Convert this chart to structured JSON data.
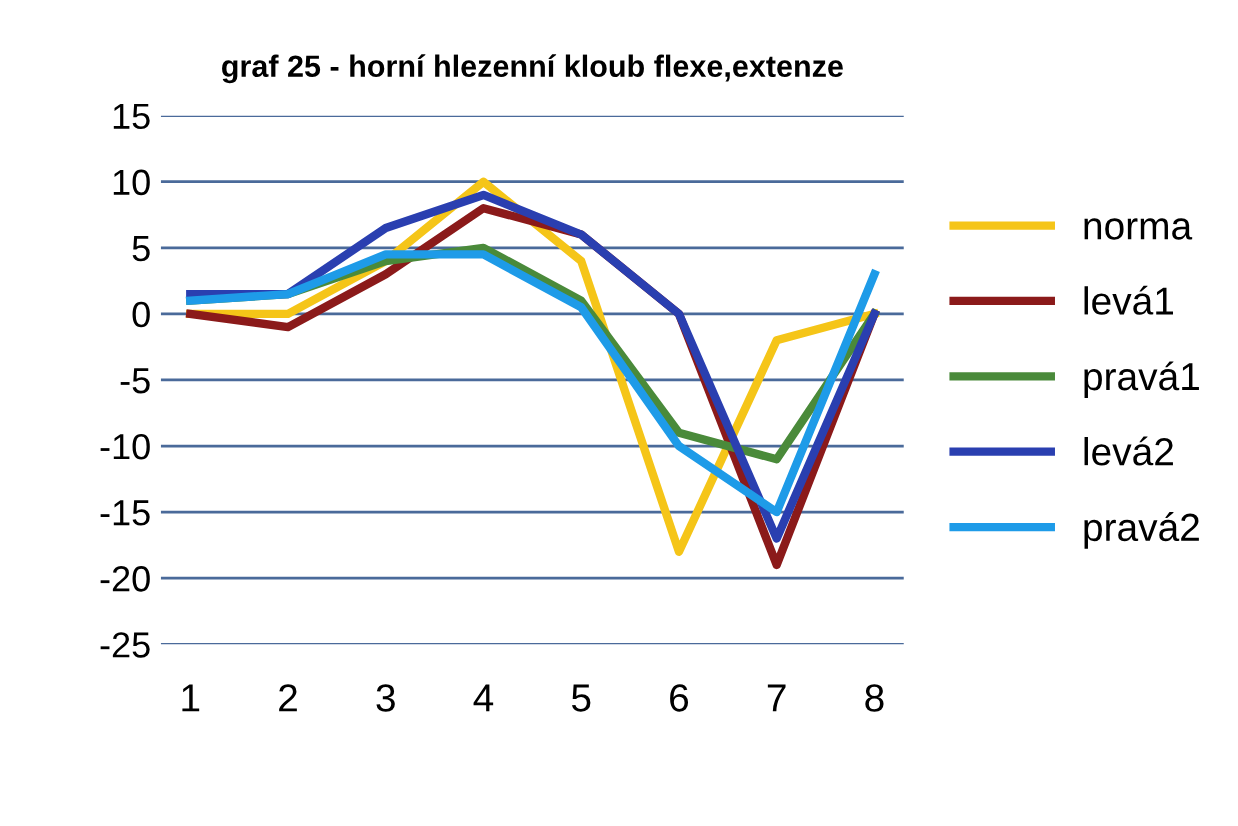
{
  "chart_data": {
    "type": "line",
    "title": "graf 25 - horní hlezenní kloub flexe,extenze",
    "categories": [
      "1",
      "2",
      "3",
      "4",
      "5",
      "6",
      "7",
      "8"
    ],
    "series": [
      {
        "name": "norma",
        "color": "#f5c518",
        "values": [
          0,
          0,
          4,
          10,
          4,
          -18,
          -2,
          0
        ]
      },
      {
        "name": "levá1",
        "color": "#8b1a1a",
        "values": [
          0,
          -1,
          3,
          8,
          6,
          0,
          -19,
          0
        ]
      },
      {
        "name": "pravá1",
        "color": "#4a8a3a",
        "values": [
          1,
          1.5,
          4,
          5,
          1,
          -9,
          -11,
          0
        ]
      },
      {
        "name": "levá2",
        "color": "#2a3fb0",
        "values": [
          1.5,
          1.5,
          6.5,
          9,
          6,
          0,
          -17,
          0
        ]
      },
      {
        "name": "pravá2",
        "color": "#1e9be8",
        "values": [
          1,
          1.5,
          4.5,
          4.5,
          0.5,
          -10,
          -15,
          3
        ]
      }
    ],
    "ylim": [
      -25,
      15
    ],
    "yticks": [
      -25,
      -20,
      -15,
      -10,
      -5,
      0,
      5,
      10,
      15
    ],
    "grid": "y",
    "legend": "right",
    "marker": "none",
    "line_style": "solid"
  }
}
